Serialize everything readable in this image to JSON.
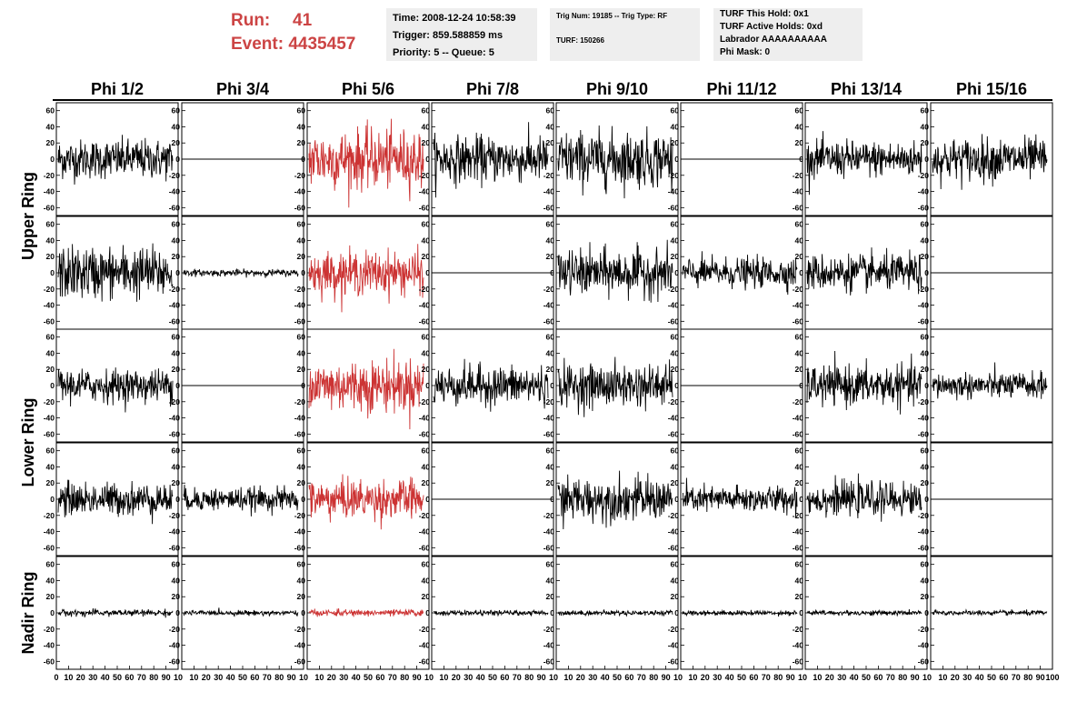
{
  "header": {
    "run_label": "Run:",
    "run_value": "41",
    "event_label": "Event:",
    "event_value": "4435457"
  },
  "info_time": {
    "time": "Time: 2008-12-24 10:58:39",
    "trigger": "Trigger: 859.588859 ms",
    "priority": "Priority: 5 -- Queue: 5"
  },
  "info_trig": {
    "trig": "Trig Num: 19185 -- Trig Type: RF",
    "turf": "TURF: 150266"
  },
  "info_turf": {
    "hold": "TURF This Hold: 0x1",
    "active": "TURF Active Holds: 0xd",
    "labrador": "Labrador AAAAAAAAAA",
    "phimask": "Phi Mask: 0"
  },
  "chart_data": {
    "type": "line",
    "columns": [
      "Phi 1/2",
      "Phi 3/4",
      "Phi 5/6",
      "Phi 7/8",
      "Phi 9/10",
      "Phi 11/12",
      "Phi 13/14",
      "Phi 15/16"
    ],
    "rows": [
      "Upper Ring",
      "Lower Ring",
      "Nadir Ring"
    ],
    "panel_rows": 5,
    "xlim": [
      0,
      100
    ],
    "ylim": [
      -70,
      70
    ],
    "x_ticks": [
      0,
      10,
      20,
      30,
      40,
      50,
      60,
      70,
      80,
      90,
      100
    ],
    "x_tick_labels_first": [
      "0",
      "10",
      "20",
      "30",
      "40",
      "50",
      "60",
      "70",
      "80",
      "90",
      "10"
    ],
    "x_tick_labels_mid": [
      "10",
      "20",
      "30",
      "40",
      "50",
      "60",
      "70",
      "80",
      "90",
      "10"
    ],
    "x_tick_labels_last": [
      "10",
      "20",
      "30",
      "40",
      "50",
      "60",
      "70",
      "80",
      "90",
      "100"
    ],
    "y_ticks": [
      60,
      40,
      20,
      0,
      -20,
      -40,
      -60
    ],
    "colors": {
      "normal": "#000000",
      "highlight": "#cc3333"
    },
    "highlight_column": 2,
    "waveform_amplitude_rms": [
      [
        12,
        0,
        18,
        14,
        17,
        0,
        11,
        13
      ],
      [
        16,
        2,
        13,
        0,
        14,
        9,
        11,
        0
      ],
      [
        10,
        0,
        16,
        12,
        13,
        0,
        12,
        8
      ],
      [
        10,
        7,
        12,
        0,
        13,
        8,
        10,
        0
      ],
      [
        2,
        1.5,
        2,
        1.5,
        1.5,
        1.5,
        1.5,
        1.5
      ]
    ],
    "samples_per_waveform": 260
  }
}
